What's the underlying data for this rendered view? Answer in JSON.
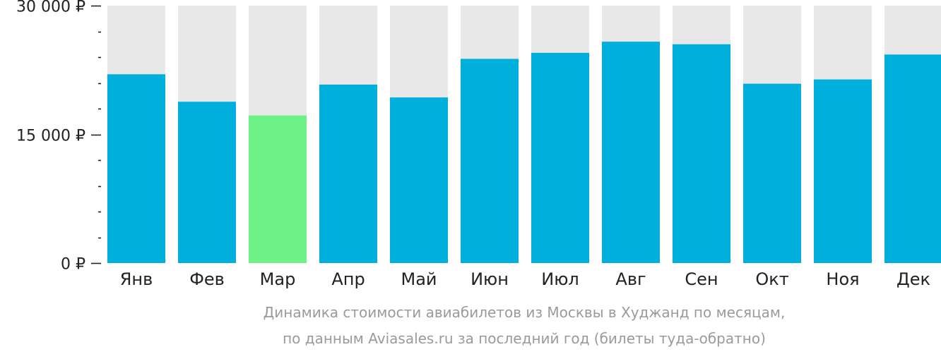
{
  "chart_data": {
    "type": "bar",
    "currency": "₽",
    "categories": [
      "Янв",
      "Фев",
      "Мар",
      "Апр",
      "Май",
      "Июн",
      "Июл",
      "Авг",
      "Сен",
      "Окт",
      "Ноя",
      "Дек"
    ],
    "values": [
      22000,
      18800,
      17200,
      20800,
      19300,
      23800,
      24500,
      25800,
      25500,
      20900,
      21400,
      24300
    ],
    "ylim": [
      0,
      30000
    ],
    "yticks_labeled": [
      {
        "value": 0,
        "label": "0 ₽"
      },
      {
        "value": 15000,
        "label": "15 000 ₽"
      },
      {
        "value": 30000,
        "label": "30 000 ₽"
      }
    ],
    "minor_tick_step": 3000,
    "highlight_index": 2,
    "caption_line1": "Динамика стоимости авиабилетов из Москвы в Худжанд по месяцам,",
    "caption_line2": "по данным Aviasales.ru за последний год (билеты туда-обратно)",
    "colors": {
      "bar": "#00afdc",
      "highlight": "#6ef186",
      "track": "#e8e8e8",
      "axis": "#222222",
      "caption": "#9a9a9a"
    }
  }
}
